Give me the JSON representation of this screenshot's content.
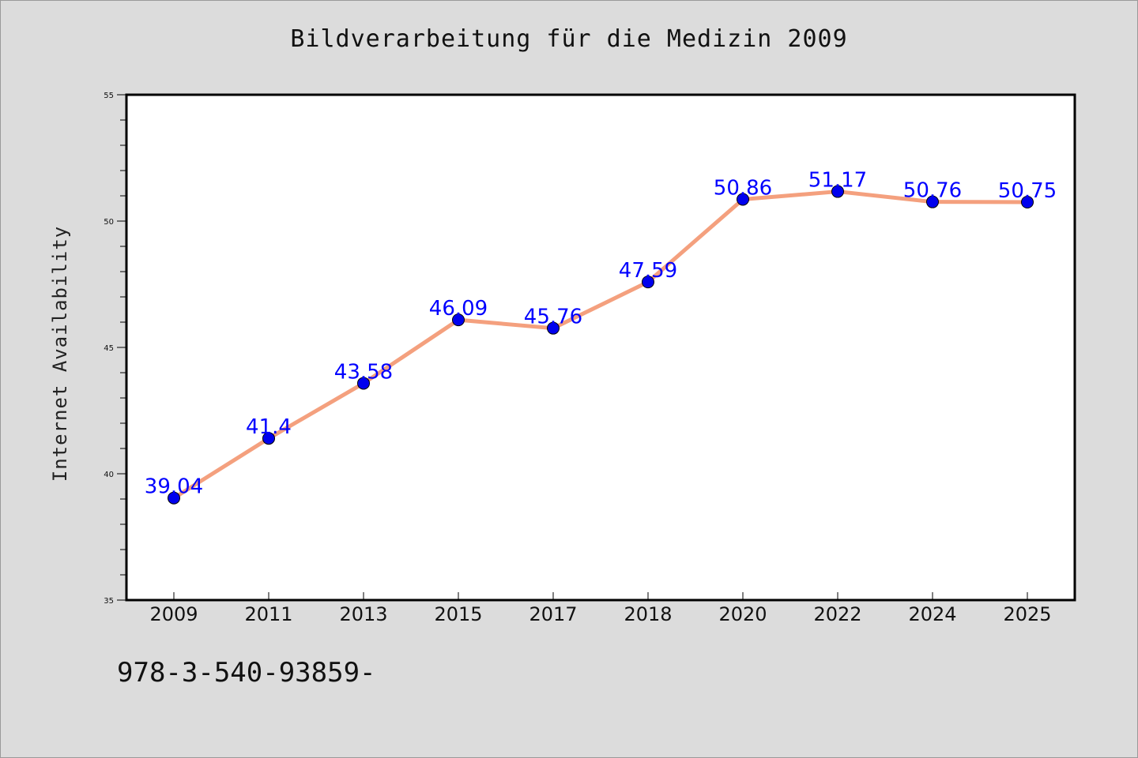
{
  "chart_data": {
    "type": "line",
    "title": "Bildverarbeitung für die Medizin 2009",
    "xlabel": "",
    "ylabel": "Internet Availability",
    "categories": [
      "2009",
      "2011",
      "2013",
      "2015",
      "2017",
      "2018",
      "2020",
      "2022",
      "2024",
      "2025"
    ],
    "series": [
      {
        "values": [
          39.04,
          41.4,
          43.58,
          46.09,
          45.76,
          47.59,
          50.86,
          51.17,
          50.76,
          50.75
        ],
        "labels": [
          "39.04",
          "41.4",
          "43.58",
          "46.09",
          "45.76",
          "47.59",
          "50.86",
          "51.17",
          "50.76",
          "50.75"
        ]
      }
    ],
    "ylim": [
      35,
      55
    ],
    "yticks": [
      "35",
      "40",
      "45",
      "50",
      "55"
    ],
    "grid": false,
    "legend": "none",
    "colors": {
      "line": "#f4a07e",
      "marker": "#0000ee",
      "data_label": "#0000ff",
      "background": "#dcdcdc",
      "plot_area": "#ffffff"
    }
  },
  "footer": {
    "text": "978-3-540-93859-"
  }
}
